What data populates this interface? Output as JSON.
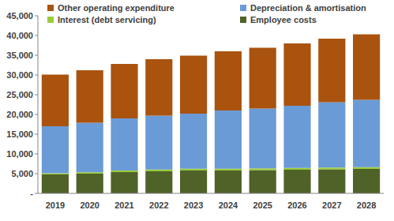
{
  "chart_data": {
    "type": "bar",
    "stacked": true,
    "grid": false,
    "legend": "top",
    "categories": [
      "2019",
      "2020",
      "2021",
      "2022",
      "2023",
      "2024",
      "2025",
      "2026",
      "2027",
      "2028"
    ],
    "series": [
      {
        "name": "Employee costs",
        "color": "#4f6228",
        "values": [
          4800,
          5000,
          5400,
          5600,
          5800,
          5800,
          5900,
          6000,
          6100,
          6200
        ]
      },
      {
        "name": "Interest (debt servicing)",
        "color": "#9bcc3c",
        "values": [
          300,
          350,
          400,
          450,
          450,
          450,
          450,
          450,
          450,
          450
        ]
      },
      {
        "name": "Depreciation & amortisation",
        "color": "#6b9bd6",
        "values": [
          11900,
          12550,
          13200,
          13650,
          13950,
          14750,
          15150,
          15750,
          16550,
          17050
        ]
      },
      {
        "name": "Other operating expenditure",
        "color": "#a9530f",
        "values": [
          13100,
          13300,
          13800,
          14300,
          14700,
          15000,
          15400,
          15800,
          16100,
          16600
        ]
      }
    ],
    "ylim": [
      0,
      45000
    ],
    "yticks": [
      {
        "value": 0,
        "label": "-"
      },
      {
        "value": 5000,
        "label": "5,000"
      },
      {
        "value": 10000,
        "label": "10,000"
      },
      {
        "value": 15000,
        "label": "15,000"
      },
      {
        "value": 20000,
        "label": "20,000"
      },
      {
        "value": 25000,
        "label": "25,000"
      },
      {
        "value": 30000,
        "label": "30,000"
      },
      {
        "value": 35000,
        "label": "35,000"
      },
      {
        "value": 40000,
        "label": "40,000"
      },
      {
        "value": 45000,
        "label": "45,000"
      }
    ]
  }
}
